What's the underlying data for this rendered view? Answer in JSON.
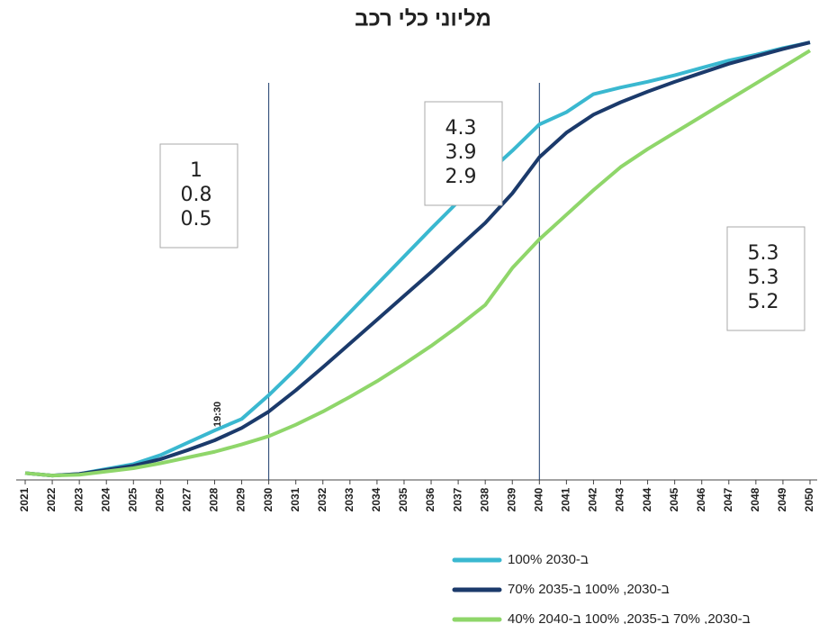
{
  "chart_data": {
    "type": "line",
    "title": "מליוני כלי רכב",
    "annotation": "19:30",
    "categories": [
      "2021",
      "2022",
      "2023",
      "2024",
      "2025",
      "2026",
      "2027",
      "2028",
      "2029",
      "2030",
      "2031",
      "2032",
      "2033",
      "2034",
      "2035",
      "2036",
      "2037",
      "2038",
      "2039",
      "2040",
      "2041",
      "2042",
      "2043",
      "2044",
      "2045",
      "2046",
      "2047",
      "2048",
      "2049",
      "2050"
    ],
    "ylim": [
      0,
      5.4
    ],
    "series": [
      {
        "name": "100% ב-2030",
        "color": "#3ab8d0",
        "values": [
          0.05,
          0.02,
          0.04,
          0.1,
          0.16,
          0.27,
          0.42,
          0.57,
          0.71,
          1,
          1.32,
          1.67,
          2.01,
          2.35,
          2.69,
          3.03,
          3.36,
          3.68,
          3.98,
          4.3,
          4.45,
          4.67,
          4.75,
          4.82,
          4.9,
          4.99,
          5.08,
          5.15,
          5.23,
          5.3
        ]
      },
      {
        "name": "70% ב-2030, 100% ב-2035",
        "color": "#1b3a6b",
        "values": [
          0.05,
          0.02,
          0.04,
          0.09,
          0.14,
          0.22,
          0.33,
          0.45,
          0.6,
          0.8,
          1.06,
          1.34,
          1.63,
          1.92,
          2.21,
          2.5,
          2.8,
          3.1,
          3.46,
          3.9,
          4.2,
          4.42,
          4.57,
          4.7,
          4.82,
          4.93,
          5.04,
          5.13,
          5.22,
          5.3
        ]
      },
      {
        "name": "40% ב-2030, 70% ב-2035, 100% ב-2040",
        "color": "#8fd66a",
        "values": [
          0.05,
          0.02,
          0.03,
          0.07,
          0.11,
          0.17,
          0.24,
          0.31,
          0.4,
          0.5,
          0.64,
          0.8,
          0.98,
          1.17,
          1.38,
          1.6,
          1.84,
          2.1,
          2.55,
          2.9,
          3.2,
          3.5,
          3.78,
          4.0,
          4.2,
          4.4,
          4.6,
          4.8,
          5.0,
          5.2
        ]
      }
    ]
  }
}
